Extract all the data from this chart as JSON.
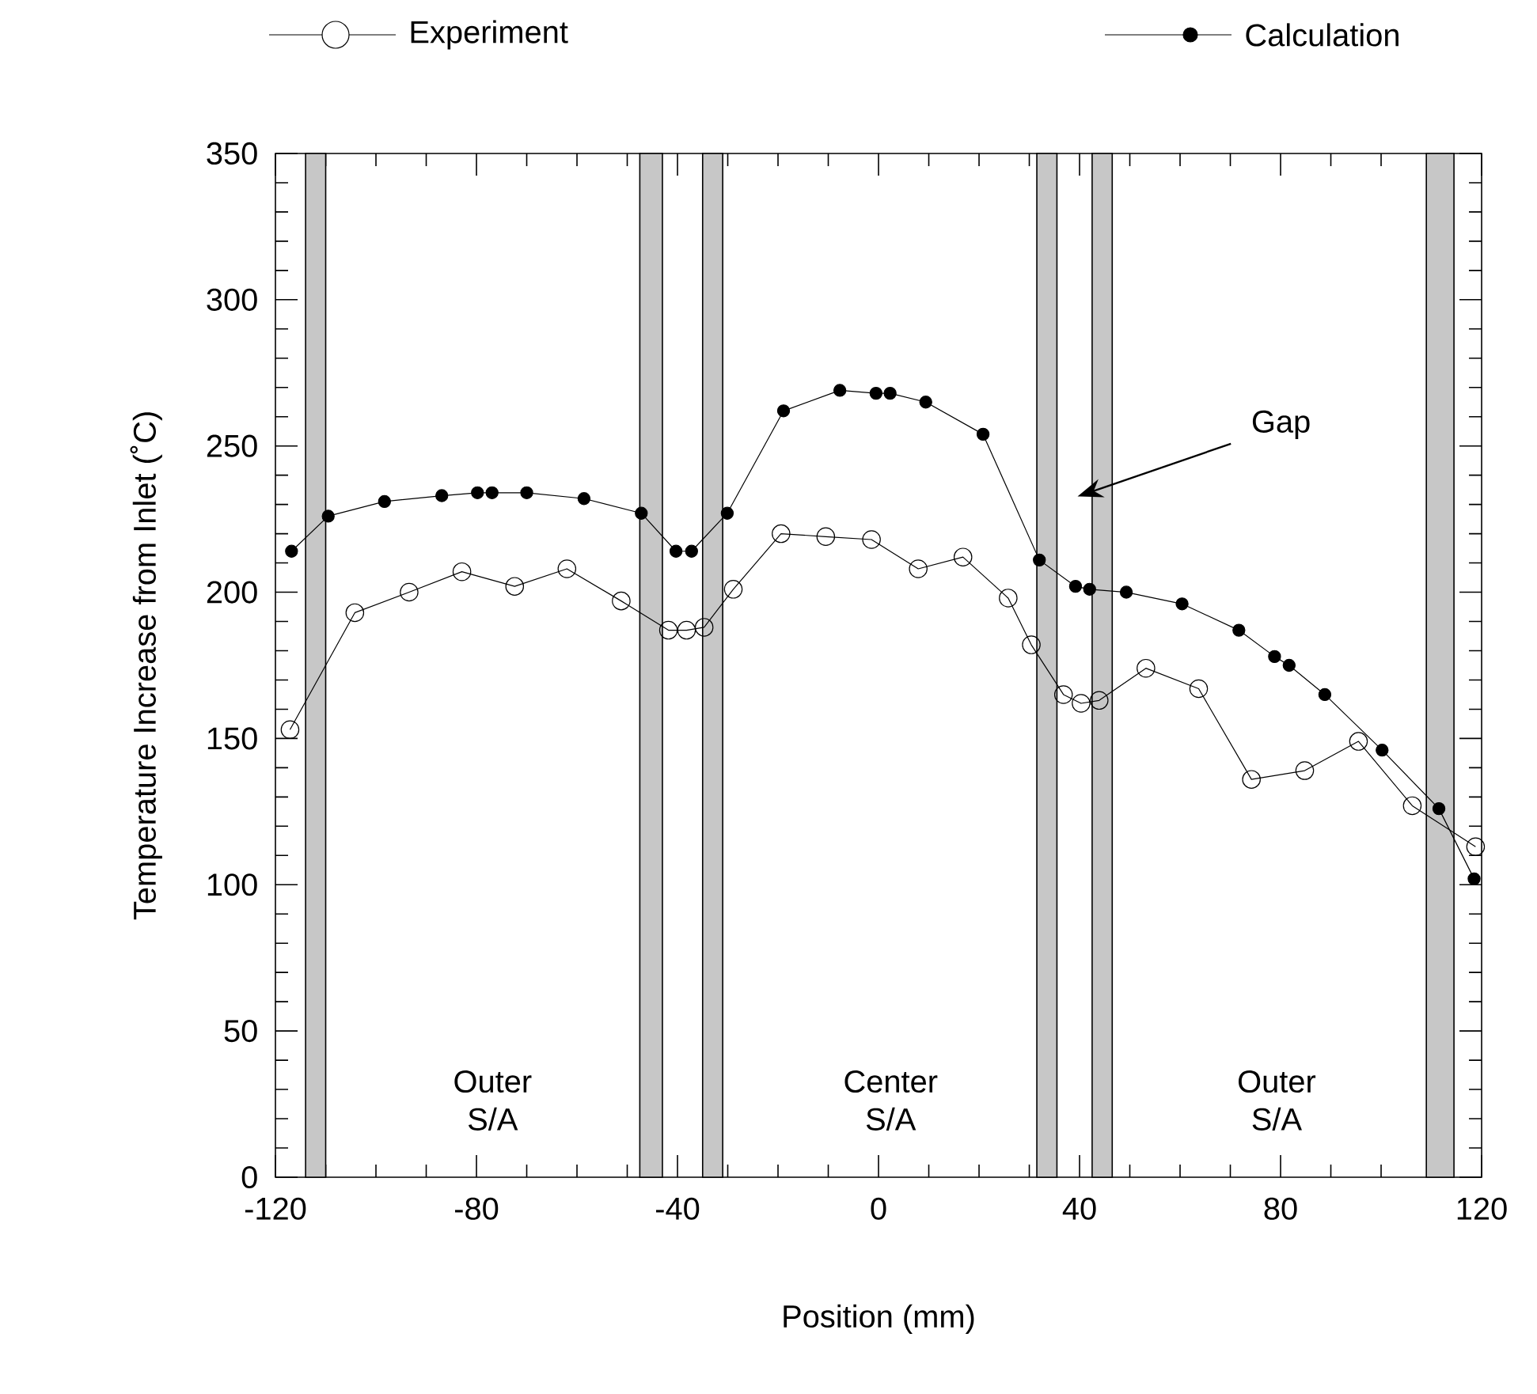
{
  "chart_data": {
    "type": "line",
    "xlabel": "Position (mm)",
    "ylabel": "Temperature Increase from Inlet (˚C)",
    "xlim": [
      -120,
      120
    ],
    "ylim": [
      0,
      350
    ],
    "xticks": [
      -120,
      -80,
      -40,
      0,
      40,
      80,
      120
    ],
    "yticks": [
      0,
      50,
      100,
      150,
      200,
      250,
      300,
      350
    ],
    "grid": false,
    "legend": "top",
    "line_style": "solid",
    "series": [
      {
        "name": "Experiment",
        "color": "#000000",
        "marker": "circle",
        "x": [
          -117.1,
          -104.2,
          -93.4,
          -82.9,
          -72.4,
          -62,
          -51.2,
          -41.8,
          -38.2,
          -34.7,
          -28.9,
          -19.4,
          -10.5,
          -1.4,
          7.9,
          16.8,
          25.8,
          30.4,
          36.8,
          40.3,
          43.9,
          53.2,
          63.7,
          74.2,
          84.8,
          95.5,
          106.2,
          118.8
        ],
        "values": [
          153,
          193,
          200,
          207,
          202,
          208,
          197,
          187,
          187,
          188,
          201,
          220,
          219,
          218,
          208,
          212,
          198,
          182,
          165,
          162,
          163,
          174,
          167,
          136,
          139,
          149,
          127,
          113
        ]
      },
      {
        "name": "Calculation",
        "color": "#000000",
        "marker": "circle",
        "x": [
          -116.8,
          -109.5,
          -98.3,
          -86.9,
          -79.8,
          -76.9,
          -70,
          -58.6,
          -47.2,
          -40.3,
          -37.2,
          -30.1,
          -18.9,
          -7.7,
          -0.5,
          2.3,
          9.4,
          20.8,
          32,
          39.2,
          42,
          49.3,
          60.4,
          71.7,
          78.8,
          81.7,
          88.8,
          100.2,
          111.5,
          118.5
        ],
        "values": [
          214,
          226,
          231,
          233,
          234,
          234,
          234,
          232,
          227,
          214,
          214,
          227,
          262,
          269,
          268,
          268,
          265,
          254,
          211,
          202,
          201,
          200,
          196,
          187,
          178,
          175,
          165,
          146,
          126,
          102
        ]
      }
    ],
    "bands": [
      {
        "axis": "x",
        "from": -114,
        "to": -110
      },
      {
        "axis": "x",
        "from": -47.5,
        "to": -43
      },
      {
        "axis": "x",
        "from": -35,
        "to": -31
      },
      {
        "axis": "x",
        "from": 31.5,
        "to": 35.5
      },
      {
        "axis": "x",
        "from": 42.5,
        "to": 46.5
      },
      {
        "axis": "x",
        "from": 109,
        "to": 114.5
      }
    ],
    "annotations": [
      "Outer S/A",
      "Center S/A",
      "Outer S/A",
      "Gap"
    ]
  }
}
